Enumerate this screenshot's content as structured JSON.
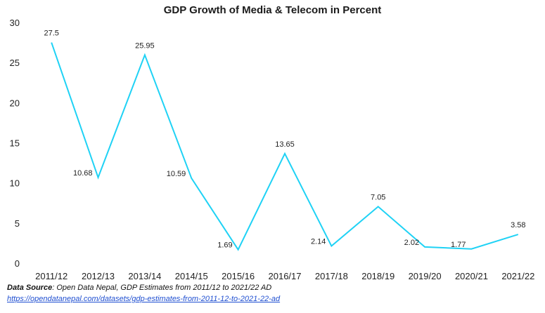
{
  "chart_data": {
    "type": "line",
    "title": "GDP Growth of Media & Telecom in Percent",
    "xlabel": "",
    "ylabel": "",
    "categories": [
      "2011/12",
      "2012/13",
      "2013/14",
      "2014/15",
      "2015/16",
      "2016/17",
      "2017/18",
      "2018/19",
      "2019/20",
      "2020/21",
      "2021/22"
    ],
    "series": [
      {
        "values": [
          27.5,
          10.68,
          25.95,
          10.59,
          1.69,
          13.65,
          2.14,
          7.05,
          2.02,
          1.77,
          3.58
        ]
      }
    ],
    "data_labels": [
      "27.5",
      "10.68",
      "25.95",
      "10.59",
      "1.69",
      "13.65",
      "2.14",
      "7.05",
      "2.02",
      "1.77",
      "3.58"
    ],
    "yticks": [
      "0",
      "5",
      "10",
      "15",
      "20",
      "25",
      "30"
    ],
    "ylim": [
      0,
      30
    ],
    "grid": false,
    "legend": "none",
    "line_color": "#1fd2f5"
  },
  "source": {
    "label": "Data Source",
    "text": ": Open Data Nepal,  GDP Estimates from 2011/12 to 2021/22 AD",
    "link": "https://opendatanepal.com/datasets/gdp-estimates-from-2011-12-to-2021-22-ad"
  }
}
